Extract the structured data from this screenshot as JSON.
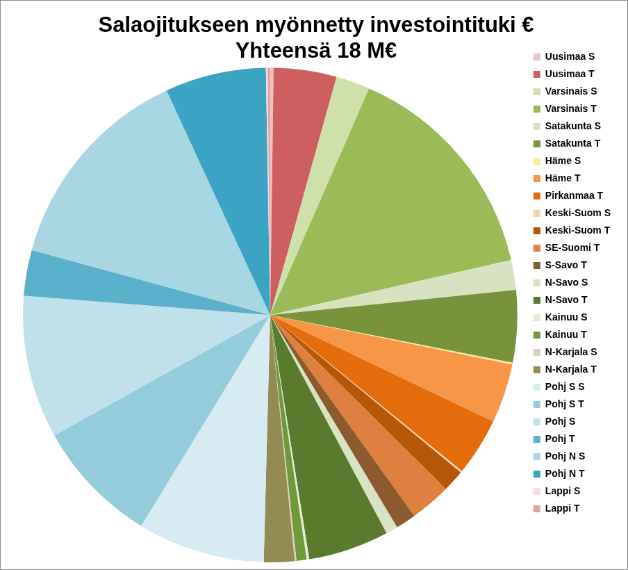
{
  "chart_data": {
    "type": "pie",
    "title": "Salaojitukseen myönnetty investointituki €",
    "subtitle": "Yhteensä 18 M€",
    "categories": [
      "Uusimaa S",
      "Uusimaa T",
      "Varsinais S",
      "Varsinais T",
      "Satakunta S",
      "Satakunta T",
      "Häme S",
      "Häme T",
      "Pirkanmaa T",
      "Keski-Suom S",
      "Keski-Suom T",
      "SE-Suomi T",
      "S-Savo T",
      "N-Savo S",
      "N-Savo T",
      "Kainuu S",
      "Kainuu T",
      "N-Karjala S",
      "N-Karjala T",
      "Pohj S S",
      "Pohj S T",
      "Pohj S",
      "Pohj T",
      "Pohj N S",
      "Pohj N T",
      "Lappi S",
      "Lappi T"
    ],
    "values": [
      0.04,
      0.74,
      0.4,
      2.68,
      0.35,
      0.85,
      0.02,
      0.7,
      0.68,
      0.02,
      0.26,
      0.48,
      0.24,
      0.14,
      0.95,
      0.03,
      0.12,
      0.02,
      0.36,
      1.5,
      1.47,
      1.68,
      0.54,
      2.5,
      1.19,
      0.02,
      0.03
    ],
    "colors": [
      "#e8c4c4",
      "#cd5f5f",
      "#cfe0a8",
      "#9bbb59",
      "#d6e2c0",
      "#77933c",
      "#fde9a0",
      "#f79646",
      "#e46c0a",
      "#f6d3b5",
      "#b65708",
      "#dd8040",
      "#8c5a2e",
      "#d7e3c2",
      "#5a7a2e",
      "#e3ecd5",
      "#6e9a3c",
      "#d9d0b8",
      "#948a54",
      "#d6ecf2",
      "#93cddd",
      "#bfe1ea",
      "#5bb1cb",
      "#a9d6e3",
      "#3ba3c3",
      "#f4dede",
      "#e6a3a3"
    ],
    "legend": "right"
  }
}
